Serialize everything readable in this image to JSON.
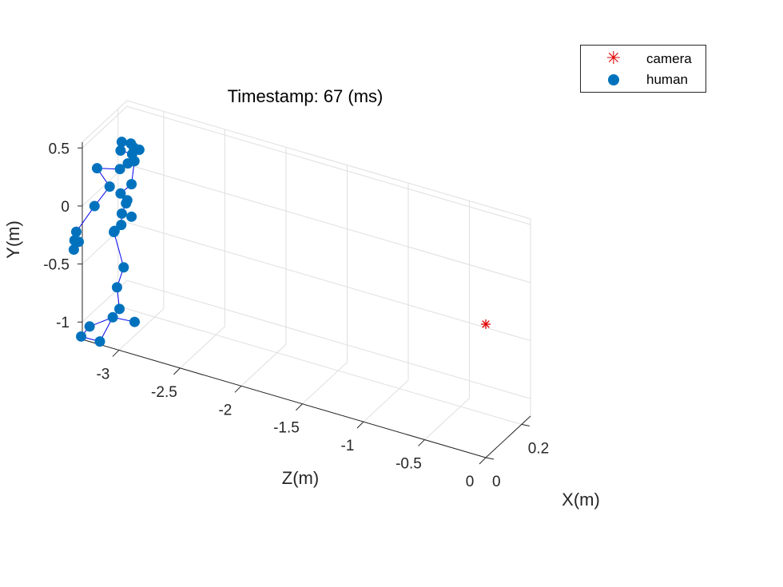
{
  "chart_data": {
    "type": "scatter3d",
    "title": "Timestamp: 67 (ms)",
    "xlabel": "X(m)",
    "ylabel": "Y(m)",
    "zlabel": "Z(m)",
    "xlim": [
      0,
      0.25
    ],
    "ylim": [
      -1.15,
      0.55
    ],
    "zlim": [
      -3.3,
      0
    ],
    "x_ticks": [
      {
        "value": 0,
        "label": "0"
      },
      {
        "value": 0.2,
        "label": "0.2"
      }
    ],
    "y_ticks": [
      {
        "value": 0.5,
        "label": "0.5"
      },
      {
        "value": 0,
        "label": "0"
      },
      {
        "value": -0.5,
        "label": "-0.5"
      },
      {
        "value": -1,
        "label": "-1"
      }
    ],
    "z_ticks": [
      {
        "value": -3,
        "label": "-3"
      },
      {
        "value": -2.5,
        "label": "-2.5"
      },
      {
        "value": -2,
        "label": "-2"
      },
      {
        "value": -1.5,
        "label": "-1.5"
      },
      {
        "value": -1,
        "label": "-1"
      },
      {
        "value": -0.5,
        "label": "-0.5"
      },
      {
        "value": 0,
        "label": "0"
      }
    ],
    "grid": true,
    "legend_position": "top-right",
    "series": [
      {
        "name": "camera",
        "marker": "asterisk",
        "color": "#e00000",
        "points": [
          {
            "x": 0,
            "y": 0,
            "z": 0
          }
        ]
      },
      {
        "name": "human",
        "marker": "filled-circle",
        "color": "#0072bd",
        "points": [
          {
            "x": 0.07,
            "y": 0.52,
            "z": -3.08
          },
          {
            "x": 0.08,
            "y": 0.51,
            "z": -3.02
          },
          {
            "x": 0.05,
            "y": 0.48,
            "z": -3.06
          },
          {
            "x": 0.07,
            "y": 0.5,
            "z": -2.98
          },
          {
            "x": 0.06,
            "y": 0.46,
            "z": -2.98
          },
          {
            "x": 0.1,
            "y": 0.44,
            "z": -2.98
          },
          {
            "x": -0.02,
            "y": 0.4,
            "z": -3.15
          },
          {
            "x": 0.07,
            "y": 0.35,
            "z": -3.03
          },
          {
            "x": 0.1,
            "y": 0.33,
            "z": -3.02
          },
          {
            "x": 0.06,
            "y": 0.3,
            "z": -3.08
          },
          {
            "x": 0.03,
            "y": 0.18,
            "z": -3.12
          },
          {
            "x": 0.07,
            "y": 0.18,
            "z": -3.0
          },
          {
            "x": 0.05,
            "y": 0.11,
            "z": -3.06
          },
          {
            "x": 0.06,
            "y": 0.05,
            "z": -3.02
          },
          {
            "x": 0.0,
            "y": 0.03,
            "z": -3.2
          },
          {
            "x": 0.06,
            "y": 0.02,
            "z": -3.03
          },
          {
            "x": 0.05,
            "y": -0.06,
            "z": -3.05
          },
          {
            "x": 0.07,
            "y": -0.1,
            "z": -3.0
          },
          {
            "x": 0.04,
            "y": -0.14,
            "z": -3.04
          },
          {
            "x": 0.03,
            "y": -0.19,
            "z": -3.08
          },
          {
            "x": 0.04,
            "y": -0.22,
            "z": -3.1
          },
          {
            "x": -0.02,
            "y": -0.2,
            "z": -3.32
          },
          {
            "x": -0.03,
            "y": -0.26,
            "z": -3.32
          },
          {
            "x": -0.02,
            "y": -0.28,
            "z": -3.3
          },
          {
            "x": -0.02,
            "y": -0.36,
            "z": -3.34
          },
          {
            "x": 0.04,
            "y": -0.5,
            "z": -3.02
          },
          {
            "x": 0.03,
            "y": -0.67,
            "z": -3.06
          },
          {
            "x": 0.03,
            "y": -0.85,
            "z": -3.04
          },
          {
            "x": 0.02,
            "y": -0.92,
            "z": -3.08
          },
          {
            "x": 0.06,
            "y": -0.98,
            "z": -2.96
          },
          {
            "x": 0.0,
            "y": -1.02,
            "z": -3.24
          },
          {
            "x": -0.02,
            "y": -1.09,
            "z": -3.28
          },
          {
            "x": 0.03,
            "y": -1.18,
            "z": -3.2
          }
        ],
        "connections": [
          [
            0,
            1
          ],
          [
            1,
            3
          ],
          [
            3,
            5
          ],
          [
            0,
            2
          ],
          [
            2,
            4
          ],
          [
            4,
            7
          ],
          [
            7,
            9
          ],
          [
            9,
            6
          ],
          [
            6,
            10
          ],
          [
            10,
            14
          ],
          [
            7,
            8
          ],
          [
            8,
            11
          ],
          [
            11,
            12
          ],
          [
            12,
            13
          ],
          [
            13,
            15
          ],
          [
            15,
            16
          ],
          [
            16,
            17
          ],
          [
            16,
            18
          ],
          [
            18,
            19
          ],
          [
            19,
            20
          ],
          [
            14,
            21
          ],
          [
            21,
            22
          ],
          [
            22,
            23
          ],
          [
            23,
            24
          ],
          [
            20,
            25
          ],
          [
            25,
            26
          ],
          [
            26,
            27
          ],
          [
            27,
            28
          ],
          [
            28,
            29
          ],
          [
            28,
            30
          ],
          [
            30,
            31
          ],
          [
            31,
            32
          ],
          [
            32,
            28
          ]
        ]
      }
    ]
  }
}
